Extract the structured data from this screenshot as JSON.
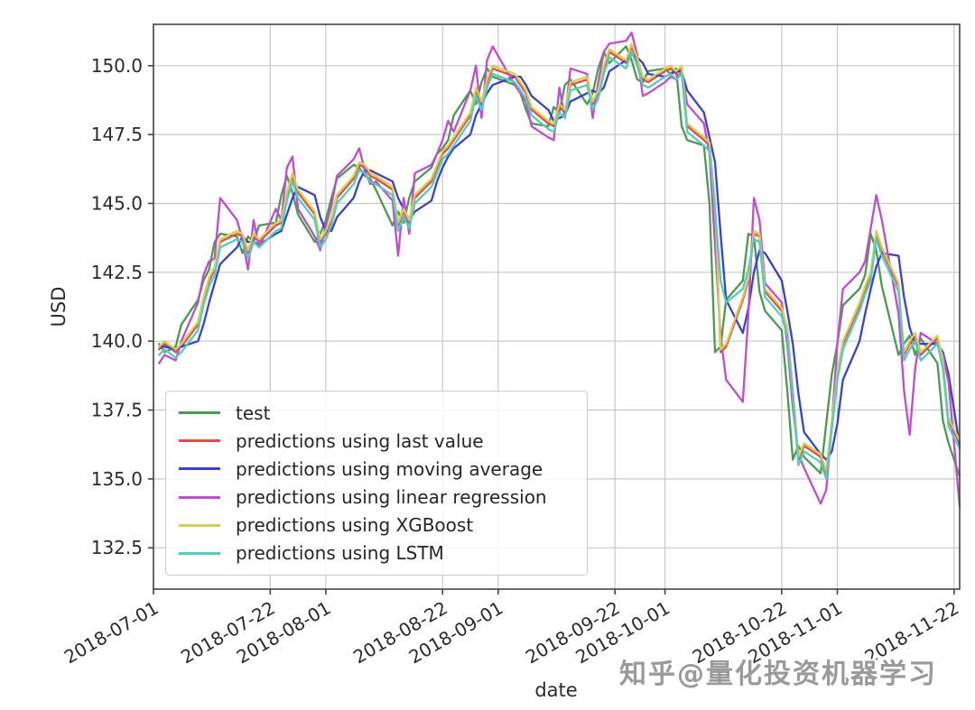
{
  "watermark": {
    "text": "知乎@量化投资机器学习",
    "color": "#9a9a9a"
  },
  "axes_style": {
    "grid_color": "#c9c9c9",
    "spine_color": "#454545",
    "tick_color": "#2b2b2b"
  },
  "chart_data": {
    "type": "line",
    "title": "",
    "xlabel": "date",
    "ylabel": "USD",
    "grid": true,
    "legend_position": "lower left",
    "xlim_days_from_2018_07_01": [
      0,
      145
    ],
    "ylim": [
      131.0,
      151.5
    ],
    "y_ticks": [
      132.5,
      135.0,
      137.5,
      140.0,
      142.5,
      145.0,
      147.5,
      150.0
    ],
    "y_tick_labels": [
      "132.5",
      "135.0",
      "137.5",
      "140.0",
      "142.5",
      "145.0",
      "147.5",
      "150.0"
    ],
    "x_tick_days": [
      0,
      21,
      31,
      52,
      62,
      83,
      92,
      113,
      123,
      144
    ],
    "x_tick_labels": [
      "2018-07-01",
      "2018-07-22",
      "2018-08-01",
      "2018-08-22",
      "2018-09-01",
      "2018-09-22",
      "2018-10-01",
      "2018-10-22",
      "2018-11-01",
      "2018-11-22"
    ],
    "x_days": [
      1,
      2,
      4,
      5,
      8,
      9,
      10,
      11,
      12,
      15,
      16,
      17,
      18,
      19,
      22,
      23,
      24,
      25,
      26,
      29,
      30,
      31,
      32,
      33,
      36,
      37,
      38,
      39,
      40,
      43,
      44,
      45,
      46,
      47,
      50,
      51,
      52,
      53,
      54,
      57,
      58,
      59,
      60,
      61,
      65,
      66,
      67,
      68,
      71,
      72,
      73,
      74,
      75,
      78,
      79,
      80,
      81,
      82,
      85,
      86,
      87,
      88,
      89,
      92,
      93,
      94,
      95,
      96,
      99,
      100,
      101,
      102,
      103,
      106,
      107,
      108,
      109,
      110,
      113,
      114,
      115,
      116,
      117,
      120,
      121,
      122,
      123,
      124,
      127,
      128,
      129,
      130,
      131,
      134,
      135,
      136,
      137,
      138,
      141,
      142,
      143,
      145
    ],
    "dates": [
      "2018-07-02",
      "2018-07-03",
      "2018-07-05",
      "2018-07-06",
      "2018-07-09",
      "2018-07-10",
      "2018-07-11",
      "2018-07-12",
      "2018-07-13",
      "2018-07-16",
      "2018-07-17",
      "2018-07-18",
      "2018-07-19",
      "2018-07-20",
      "2018-07-23",
      "2018-07-24",
      "2018-07-25",
      "2018-07-26",
      "2018-07-27",
      "2018-07-30",
      "2018-07-31",
      "2018-08-01",
      "2018-08-02",
      "2018-08-03",
      "2018-08-06",
      "2018-08-07",
      "2018-08-08",
      "2018-08-09",
      "2018-08-10",
      "2018-08-13",
      "2018-08-14",
      "2018-08-15",
      "2018-08-16",
      "2018-08-17",
      "2018-08-20",
      "2018-08-21",
      "2018-08-22",
      "2018-08-23",
      "2018-08-24",
      "2018-08-27",
      "2018-08-28",
      "2018-08-29",
      "2018-08-30",
      "2018-08-31",
      "2018-09-04",
      "2018-09-05",
      "2018-09-06",
      "2018-09-07",
      "2018-09-10",
      "2018-09-11",
      "2018-09-12",
      "2018-09-13",
      "2018-09-14",
      "2018-09-17",
      "2018-09-18",
      "2018-09-19",
      "2018-09-20",
      "2018-09-21",
      "2018-09-24",
      "2018-09-25",
      "2018-09-26",
      "2018-09-27",
      "2018-09-28",
      "2018-10-01",
      "2018-10-02",
      "2018-10-03",
      "2018-10-04",
      "2018-10-05",
      "2018-10-08",
      "2018-10-09",
      "2018-10-10",
      "2018-10-11",
      "2018-10-12",
      "2018-10-15",
      "2018-10-16",
      "2018-10-17",
      "2018-10-18",
      "2018-10-19",
      "2018-10-22",
      "2018-10-23",
      "2018-10-24",
      "2018-10-25",
      "2018-10-26",
      "2018-10-29",
      "2018-10-30",
      "2018-10-31",
      "2018-11-01",
      "2018-11-02",
      "2018-11-05",
      "2018-11-06",
      "2018-11-07",
      "2018-11-08",
      "2018-11-09",
      "2018-11-12",
      "2018-11-13",
      "2018-11-14",
      "2018-11-15",
      "2018-11-16",
      "2018-11-19",
      "2018-11-20",
      "2018-11-21",
      "2018-11-23"
    ],
    "series": [
      {
        "name": "test",
        "color": "#4a9b4f",
        "values": [
          139.9,
          139.6,
          139.8,
          140.6,
          141.5,
          142.2,
          142.6,
          143.6,
          143.9,
          143.8,
          143.2,
          143.8,
          143.6,
          144.2,
          144.3,
          145.3,
          146.0,
          145.4,
          144.6,
          143.6,
          143.9,
          144.4,
          145.2,
          145.9,
          146.4,
          146.3,
          146.0,
          145.9,
          145.5,
          144.2,
          144.7,
          144.3,
          145.2,
          145.8,
          146.3,
          146.8,
          147.0,
          147.3,
          148.2,
          149.1,
          148.6,
          149.4,
          149.9,
          149.6,
          149.3,
          149.0,
          148.4,
          147.9,
          147.8,
          148.5,
          148.3,
          149.3,
          149.5,
          148.6,
          149.0,
          149.9,
          150.5,
          150.1,
          150.7,
          150.2,
          149.5,
          149.4,
          149.8,
          149.9,
          149.7,
          149.9,
          147.8,
          147.3,
          147.1,
          145.0,
          139.6,
          139.8,
          141.5,
          142.2,
          143.9,
          143.8,
          141.8,
          141.1,
          140.4,
          138.2,
          135.7,
          136.2,
          135.8,
          135.2,
          137.0,
          138.8,
          139.9,
          141.3,
          141.9,
          142.4,
          143.9,
          143.3,
          142.0,
          139.5,
          139.9,
          140.2,
          139.5,
          140.1,
          139.2,
          137.1,
          136.3,
          135.1
        ]
      },
      {
        "name": "predictions using last value",
        "color": "#dd4f44",
        "values": [
          139.7,
          139.9,
          139.6,
          139.8,
          140.6,
          141.5,
          142.2,
          142.6,
          143.6,
          143.9,
          143.8,
          143.2,
          143.8,
          143.6,
          144.2,
          144.3,
          145.3,
          146.0,
          145.4,
          144.6,
          143.6,
          143.9,
          144.4,
          145.2,
          145.9,
          146.4,
          146.3,
          146.0,
          145.9,
          145.5,
          144.2,
          144.7,
          144.3,
          145.2,
          145.8,
          146.3,
          146.8,
          147.0,
          147.3,
          148.2,
          149.1,
          148.6,
          149.4,
          149.9,
          149.6,
          149.3,
          149.0,
          148.4,
          147.9,
          147.8,
          148.5,
          148.3,
          149.3,
          149.5,
          148.6,
          149.0,
          149.9,
          150.5,
          150.1,
          150.7,
          150.2,
          149.5,
          149.4,
          149.8,
          149.9,
          149.7,
          149.9,
          147.8,
          147.3,
          147.1,
          145.0,
          139.6,
          139.8,
          141.5,
          142.2,
          143.9,
          143.8,
          141.8,
          141.1,
          140.4,
          138.2,
          135.7,
          136.2,
          135.8,
          135.2,
          137.0,
          138.8,
          139.9,
          141.3,
          141.9,
          142.4,
          143.9,
          143.3,
          142.0,
          139.5,
          139.9,
          140.2,
          139.5,
          140.1,
          139.2,
          137.1,
          136.3
        ]
      },
      {
        "name": "predictions using moving average",
        "color": "#3a41d0",
        "values": [
          139.8,
          139.8,
          139.7,
          139.8,
          140.0,
          140.6,
          141.4,
          142.1,
          142.8,
          143.4,
          143.8,
          143.6,
          143.6,
          143.5,
          143.9,
          144.0,
          144.6,
          145.2,
          145.6,
          145.3,
          144.5,
          144.0,
          144.0,
          144.5,
          145.2,
          145.8,
          146.2,
          146.2,
          146.1,
          145.8,
          145.2,
          144.8,
          144.4,
          144.7,
          145.1,
          145.8,
          146.3,
          146.7,
          147.0,
          147.5,
          148.2,
          148.6,
          149.0,
          149.3,
          149.6,
          149.6,
          149.3,
          148.9,
          148.4,
          148.0,
          148.1,
          148.2,
          148.7,
          149.0,
          149.1,
          149.0,
          149.2,
          149.8,
          150.2,
          150.4,
          150.3,
          150.1,
          149.7,
          149.6,
          149.7,
          149.8,
          149.8,
          149.1,
          148.3,
          147.4,
          146.5,
          143.9,
          141.5,
          140.3,
          141.2,
          142.5,
          143.3,
          143.2,
          142.2,
          141.1,
          139.9,
          138.1,
          136.7,
          135.9,
          135.7,
          136.0,
          137.0,
          138.6,
          140.0,
          141.0,
          141.9,
          142.7,
          143.2,
          143.1,
          141.6,
          140.5,
          139.9,
          139.9,
          139.9,
          139.6,
          138.8,
          136.2
        ]
      },
      {
        "name": "predictions using linear regression",
        "color": "#c04cce",
        "values": [
          139.2,
          139.5,
          139.3,
          140.0,
          141.4,
          142.4,
          142.9,
          143.0,
          145.2,
          144.4,
          143.7,
          142.6,
          144.4,
          143.4,
          144.8,
          144.4,
          146.3,
          146.7,
          144.8,
          143.8,
          143.3,
          144.2,
          144.9,
          146.0,
          146.6,
          147.0,
          146.2,
          145.7,
          145.8,
          145.1,
          143.1,
          145.2,
          143.9,
          146.1,
          146.4,
          146.8,
          147.3,
          148.0,
          147.6,
          149.1,
          150.0,
          148.1,
          150.2,
          150.7,
          149.3,
          149.0,
          148.7,
          147.8,
          147.4,
          147.3,
          149.2,
          148.1,
          149.9,
          149.7,
          148.1,
          149.4,
          150.5,
          150.8,
          150.9,
          151.2,
          150.4,
          148.9,
          149.0,
          149.4,
          149.6,
          149.5,
          149.8,
          148.6,
          147.9,
          146.8,
          143.5,
          140.2,
          138.6,
          137.8,
          141.0,
          145.2,
          144.4,
          142.1,
          141.4,
          139.9,
          137.6,
          135.9,
          135.4,
          134.1,
          134.6,
          137.0,
          139.9,
          141.9,
          142.5,
          142.9,
          144.1,
          145.3,
          144.4,
          141.0,
          138.2,
          136.6,
          139.0,
          140.3,
          139.9,
          139.5,
          138.5,
          134.0
        ]
      },
      {
        "name": "predictions using XGBoost",
        "color": "#d6cf55",
        "values": [
          139.8,
          140.0,
          139.7,
          139.9,
          140.7,
          141.6,
          142.3,
          142.7,
          143.7,
          144.0,
          143.9,
          143.3,
          143.9,
          143.7,
          144.3,
          144.4,
          145.4,
          146.1,
          145.5,
          144.7,
          143.7,
          144.0,
          144.5,
          145.3,
          146.0,
          146.5,
          146.4,
          146.1,
          146.0,
          145.6,
          144.3,
          144.8,
          144.4,
          145.3,
          145.9,
          146.4,
          146.9,
          147.1,
          147.4,
          148.3,
          149.2,
          148.7,
          149.5,
          150.0,
          149.7,
          149.4,
          149.1,
          148.5,
          148.0,
          147.9,
          148.6,
          148.4,
          149.4,
          149.6,
          148.7,
          149.1,
          150.0,
          150.6,
          150.2,
          150.8,
          150.3,
          149.6,
          149.5,
          149.9,
          150.0,
          149.8,
          150.0,
          147.9,
          147.4,
          147.2,
          145.1,
          139.7,
          139.9,
          141.6,
          142.3,
          144.0,
          143.9,
          141.9,
          141.2,
          140.5,
          138.3,
          135.8,
          136.3,
          135.9,
          135.3,
          137.1,
          138.9,
          140.0,
          141.4,
          142.0,
          142.5,
          144.0,
          143.4,
          142.1,
          139.6,
          140.0,
          140.3,
          139.6,
          140.2,
          139.3,
          137.2,
          136.4
        ]
      },
      {
        "name": "predictions using LSTM",
        "color": "#56c9c0",
        "values": [
          139.5,
          139.7,
          139.4,
          139.6,
          140.4,
          141.3,
          142.0,
          142.4,
          143.4,
          143.7,
          143.6,
          143.0,
          143.6,
          143.4,
          144.0,
          144.1,
          145.1,
          145.8,
          145.2,
          144.4,
          143.4,
          143.7,
          144.2,
          145.0,
          145.7,
          146.2,
          146.1,
          145.8,
          145.7,
          145.3,
          144.0,
          144.5,
          144.1,
          145.0,
          145.6,
          146.1,
          146.6,
          146.8,
          147.1,
          148.0,
          148.9,
          148.4,
          149.2,
          149.7,
          149.4,
          149.1,
          148.8,
          148.2,
          147.7,
          147.6,
          148.3,
          148.1,
          149.1,
          149.3,
          148.4,
          148.8,
          149.7,
          150.3,
          149.9,
          150.5,
          150.0,
          149.3,
          149.2,
          149.6,
          149.7,
          149.5,
          149.7,
          147.6,
          147.1,
          146.9,
          144.8,
          142.2,
          141.4,
          141.9,
          142.6,
          143.7,
          143.6,
          141.6,
          140.9,
          140.2,
          138.0,
          135.5,
          136.0,
          135.6,
          135.0,
          136.8,
          138.6,
          139.7,
          141.1,
          141.7,
          142.2,
          143.7,
          143.1,
          141.8,
          139.3,
          139.7,
          140.0,
          139.3,
          139.9,
          139.0,
          136.9,
          136.1
        ]
      }
    ]
  }
}
